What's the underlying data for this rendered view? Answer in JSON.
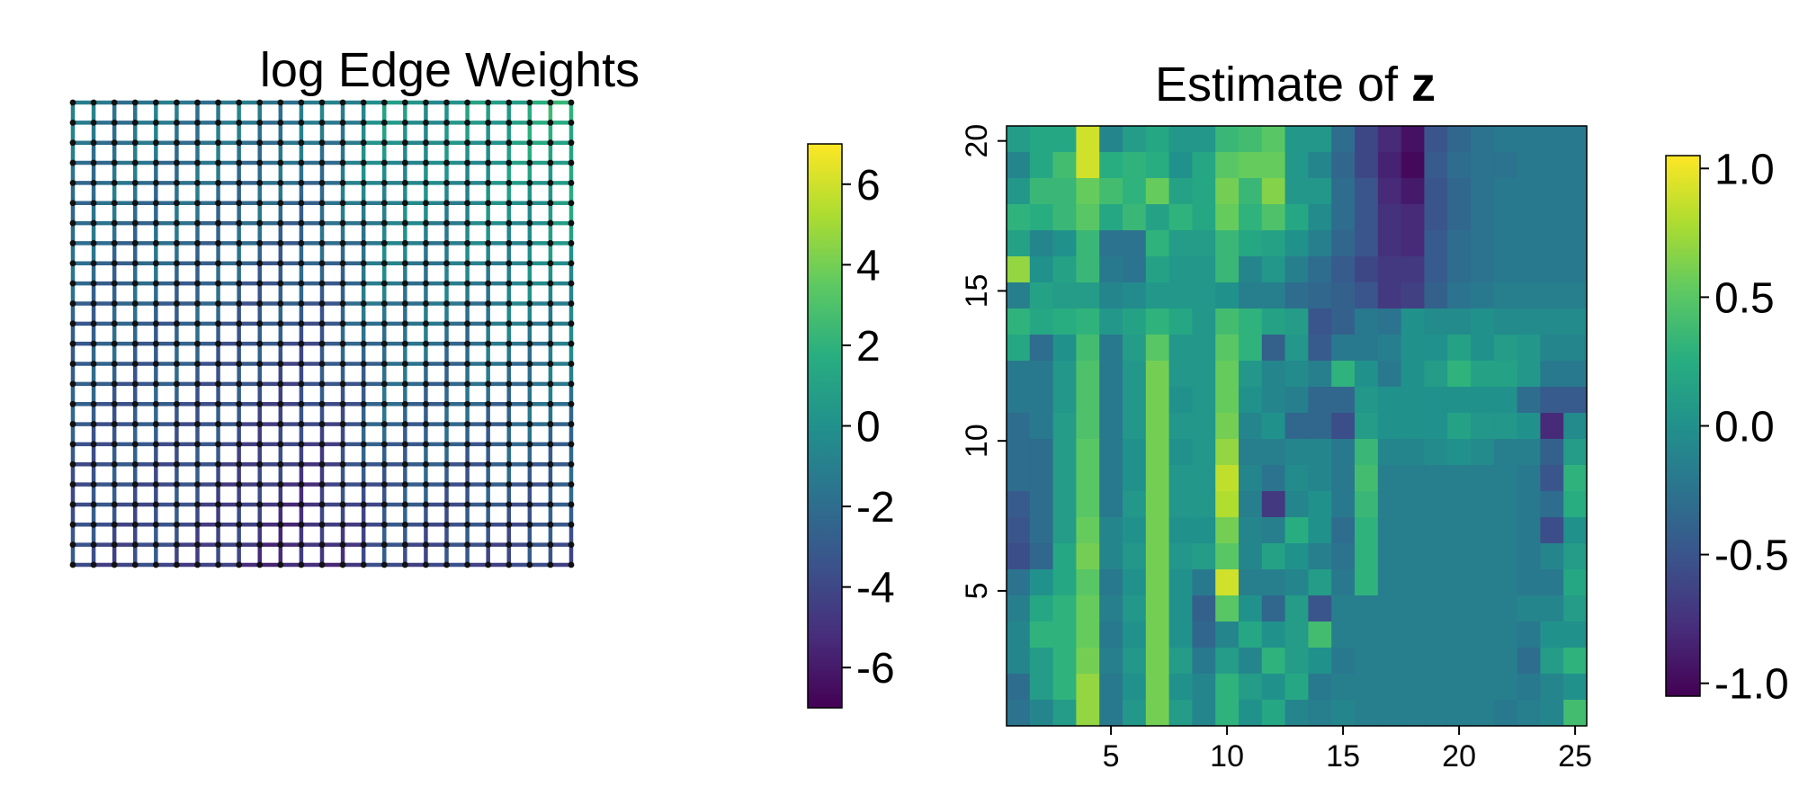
{
  "chart_data": [
    {
      "type": "graph",
      "title": "log Edge Weights",
      "grid_nodes": [
        25,
        24
      ],
      "colorbar": {
        "min": -7,
        "max": 7,
        "ticks": [
          6,
          4,
          2,
          0,
          -2,
          -4,
          -6
        ],
        "tick_labels": [
          "6",
          "4",
          "2",
          "0",
          "-2",
          "-4",
          "-6"
        ]
      },
      "colormap": [
        "#440154",
        "#472d7b",
        "#3b528b",
        "#2c728e",
        "#21918c",
        "#28ae80",
        "#5ec962",
        "#addc30",
        "#fde725"
      ]
    },
    {
      "type": "heatmap",
      "title_prefix": "Estimate of ",
      "title_symbol": "z",
      "x_range": [
        1,
        25
      ],
      "y_range": [
        1,
        20
      ],
      "xticks": [
        5,
        10,
        15,
        20,
        25
      ],
      "xtick_labels": [
        "5",
        "10",
        "15",
        "20",
        "25"
      ],
      "yticks": [
        5,
        10,
        15,
        20
      ],
      "ytick_labels": [
        "5",
        "10",
        "15",
        "20"
      ],
      "colorbar": {
        "min": -1.05,
        "max": 1.05,
        "ticks": [
          1.0,
          0.5,
          0.0,
          -0.5,
          -1.0
        ],
        "tick_labels": [
          "1.0",
          "0.5",
          "0.0",
          "-0.5",
          "-1.0"
        ]
      },
      "values": [
        [
          -0.25,
          -0.1,
          0.1,
          0.7,
          -0.2,
          0.05,
          0.6,
          0.1,
          -0.1,
          0.3,
          0.0,
          0.2,
          -0.1,
          -0.15,
          -0.1,
          -0.15,
          -0.15,
          -0.15,
          -0.15,
          -0.15,
          -0.15,
          -0.2,
          -0.15,
          -0.1,
          0.4
        ],
        [
          -0.3,
          0.1,
          0.3,
          0.7,
          -0.2,
          0.0,
          0.6,
          0.0,
          -0.1,
          0.3,
          0.1,
          0.0,
          0.2,
          -0.2,
          -0.15,
          -0.15,
          -0.15,
          -0.15,
          -0.15,
          -0.15,
          -0.15,
          -0.15,
          -0.2,
          -0.1,
          0.0
        ],
        [
          -0.1,
          0.1,
          0.3,
          0.6,
          -0.15,
          0.05,
          0.6,
          0.1,
          -0.2,
          0.1,
          -0.1,
          0.3,
          0.1,
          0.0,
          -0.2,
          -0.15,
          -0.15,
          -0.15,
          -0.15,
          -0.15,
          -0.15,
          -0.15,
          -0.3,
          0.1,
          0.3
        ],
        [
          -0.1,
          0.3,
          0.3,
          0.55,
          -0.2,
          0.0,
          0.6,
          0.0,
          -0.35,
          -0.1,
          0.2,
          0.0,
          0.1,
          0.4,
          -0.15,
          -0.15,
          -0.15,
          -0.15,
          -0.15,
          -0.15,
          -0.15,
          -0.15,
          -0.2,
          0.0,
          0.0
        ],
        [
          -0.15,
          0.2,
          0.3,
          0.55,
          -0.15,
          0.05,
          0.6,
          0.0,
          -0.4,
          0.5,
          0.0,
          -0.35,
          0.1,
          -0.5,
          -0.15,
          -0.15,
          -0.15,
          -0.15,
          -0.15,
          -0.15,
          -0.15,
          -0.15,
          -0.1,
          -0.1,
          0.1
        ],
        [
          -0.25,
          0.0,
          0.2,
          0.5,
          -0.2,
          0.0,
          0.6,
          0.0,
          -0.2,
          0.9,
          -0.15,
          -0.15,
          -0.1,
          0.1,
          -0.2,
          0.3,
          -0.15,
          -0.15,
          -0.15,
          -0.15,
          -0.15,
          -0.15,
          -0.2,
          -0.2,
          0.2
        ],
        [
          -0.55,
          -0.35,
          0.2,
          0.6,
          -0.1,
          0.05,
          0.6,
          0.05,
          0.1,
          0.5,
          -0.1,
          0.15,
          0.0,
          -0.15,
          -0.25,
          0.3,
          -0.15,
          -0.15,
          -0.15,
          -0.15,
          -0.15,
          -0.15,
          -0.2,
          -0.1,
          0.1
        ],
        [
          -0.5,
          -0.3,
          0.1,
          0.55,
          -0.1,
          0.0,
          0.6,
          0.0,
          0.0,
          0.6,
          -0.1,
          -0.15,
          0.25,
          0.0,
          -0.3,
          0.3,
          -0.15,
          -0.15,
          -0.15,
          -0.15,
          -0.15,
          -0.15,
          -0.2,
          -0.55,
          0.0
        ],
        [
          -0.45,
          -0.3,
          0.1,
          0.5,
          -0.2,
          0.05,
          0.6,
          0.05,
          0.05,
          0.8,
          -0.15,
          -0.7,
          -0.1,
          0.0,
          -0.2,
          0.35,
          -0.15,
          -0.15,
          -0.15,
          -0.15,
          -0.15,
          -0.15,
          -0.2,
          -0.3,
          0.25
        ],
        [
          -0.3,
          -0.3,
          0.1,
          0.5,
          -0.2,
          0.0,
          0.6,
          0.05,
          0.05,
          0.85,
          -0.1,
          -0.25,
          -0.05,
          -0.1,
          -0.2,
          0.4,
          -0.15,
          -0.15,
          -0.15,
          -0.15,
          -0.15,
          -0.15,
          -0.2,
          -0.5,
          0.3
        ],
        [
          -0.3,
          -0.3,
          0.1,
          0.5,
          -0.2,
          0.0,
          0.6,
          0.0,
          0.05,
          0.7,
          -0.15,
          -0.15,
          -0.1,
          -0.1,
          -0.2,
          0.35,
          -0.1,
          -0.1,
          -0.05,
          0.0,
          -0.05,
          -0.15,
          -0.15,
          -0.4,
          0.1
        ],
        [
          -0.3,
          -0.2,
          0.1,
          0.45,
          -0.2,
          0.05,
          0.6,
          0.05,
          0.05,
          0.6,
          -0.1,
          0.0,
          -0.35,
          -0.35,
          -0.55,
          0.1,
          0.0,
          0.0,
          0.0,
          0.15,
          0.05,
          0.05,
          0.0,
          -0.8,
          -0.05
        ],
        [
          -0.2,
          -0.2,
          0.05,
          0.45,
          -0.2,
          0.05,
          0.6,
          0.0,
          0.05,
          0.55,
          0.0,
          -0.1,
          -0.15,
          -0.35,
          -0.35,
          0.05,
          0.0,
          0.0,
          0.0,
          0.0,
          0.0,
          0.0,
          -0.3,
          -0.45,
          -0.45
        ],
        [
          -0.2,
          -0.2,
          0.05,
          0.45,
          -0.2,
          0.05,
          0.6,
          0.05,
          0.05,
          0.55,
          0.05,
          -0.1,
          -0.05,
          -0.15,
          0.3,
          0.0,
          -0.2,
          0.0,
          0.1,
          0.3,
          0.15,
          0.15,
          0.05,
          -0.2,
          -0.2
        ],
        [
          0.2,
          -0.3,
          0.0,
          0.4,
          -0.2,
          0.1,
          0.5,
          0.05,
          0.05,
          0.5,
          0.3,
          -0.4,
          0.05,
          -0.45,
          -0.2,
          -0.2,
          -0.15,
          0.0,
          0.0,
          0.15,
          0.0,
          0.1,
          0.05,
          -0.1,
          -0.1
        ],
        [
          0.3,
          0.2,
          0.25,
          0.3,
          0.05,
          0.15,
          0.3,
          0.2,
          0.05,
          0.4,
          0.3,
          0.15,
          0.1,
          -0.5,
          -0.4,
          -0.2,
          -0.25,
          0.0,
          -0.05,
          -0.05,
          0.0,
          -0.05,
          -0.05,
          -0.05,
          -0.05
        ],
        [
          -0.15,
          0.15,
          0.1,
          0.1,
          -0.1,
          -0.05,
          0.05,
          0.05,
          0.05,
          0.0,
          -0.15,
          -0.15,
          -0.3,
          -0.35,
          -0.4,
          -0.5,
          -0.7,
          -0.65,
          -0.4,
          -0.25,
          -0.2,
          -0.15,
          -0.15,
          -0.15,
          -0.15
        ],
        [
          0.7,
          0.0,
          0.15,
          0.35,
          -0.2,
          -0.25,
          0.15,
          0.05,
          0.05,
          0.35,
          -0.1,
          0.05,
          -0.15,
          -0.3,
          -0.45,
          -0.6,
          -0.7,
          -0.7,
          -0.45,
          -0.3,
          -0.25,
          -0.2,
          -0.2,
          -0.2,
          -0.2
        ],
        [
          0.15,
          -0.1,
          0.0,
          0.35,
          -0.25,
          -0.25,
          0.3,
          0.1,
          0.1,
          0.35,
          0.2,
          0.15,
          0.0,
          -0.15,
          -0.35,
          -0.5,
          -0.75,
          -0.8,
          -0.45,
          -0.3,
          -0.25,
          -0.2,
          -0.2,
          -0.2,
          -0.2
        ],
        [
          0.3,
          0.25,
          0.35,
          0.5,
          0.2,
          0.35,
          0.15,
          0.3,
          0.2,
          0.55,
          0.3,
          0.45,
          0.2,
          -0.05,
          -0.3,
          -0.5,
          -0.75,
          -0.8,
          -0.5,
          -0.35,
          -0.25,
          -0.2,
          -0.2,
          -0.2,
          -0.2
        ],
        [
          0.05,
          0.35,
          0.35,
          0.55,
          0.4,
          0.3,
          0.55,
          0.15,
          0.2,
          0.6,
          0.35,
          0.65,
          0.05,
          0.05,
          -0.3,
          -0.5,
          -0.8,
          -0.9,
          -0.5,
          -0.35,
          -0.25,
          -0.2,
          -0.2,
          -0.2,
          -0.2
        ],
        [
          -0.1,
          0.2,
          0.4,
          0.9,
          0.25,
          0.3,
          0.25,
          0.0,
          0.2,
          0.5,
          0.55,
          0.55,
          0.05,
          -0.1,
          -0.35,
          -0.6,
          -0.85,
          -1.0,
          -0.45,
          -0.3,
          -0.25,
          -0.25,
          -0.2,
          -0.2,
          -0.2
        ],
        [
          0.1,
          0.2,
          0.2,
          0.9,
          -0.1,
          0.1,
          0.2,
          0.05,
          0.05,
          0.35,
          0.4,
          0.5,
          0.05,
          0.05,
          -0.3,
          -0.6,
          -0.8,
          -0.95,
          -0.5,
          -0.35,
          -0.25,
          -0.2,
          -0.2,
          -0.2,
          -0.2
        ]
      ]
    }
  ]
}
